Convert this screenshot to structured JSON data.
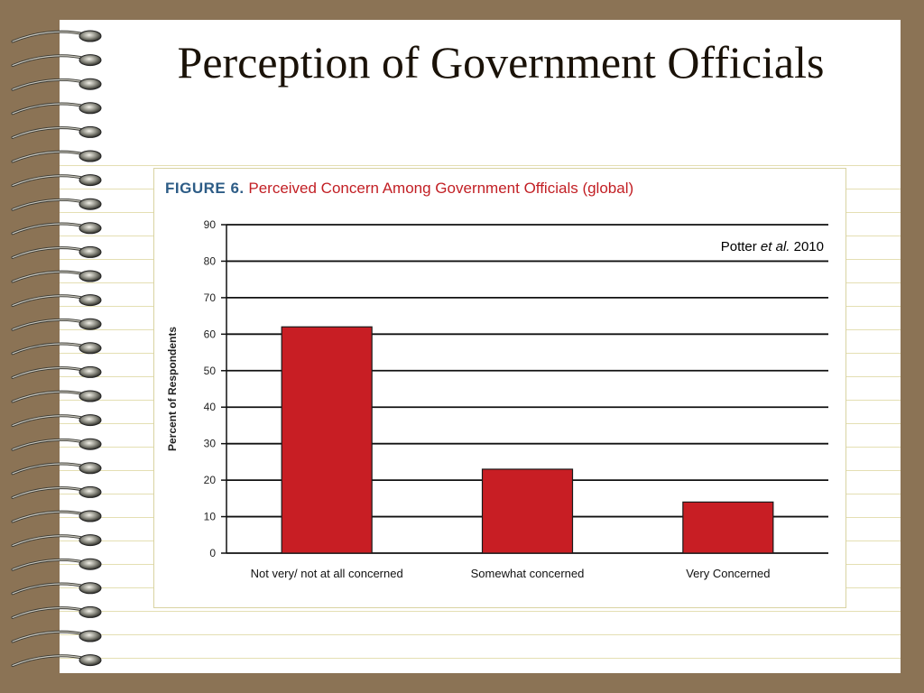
{
  "slide": {
    "title": "Perception of Government Officials"
  },
  "figure": {
    "label": "FIGURE 6.",
    "caption": "Perceived Concern Among Government Officials (global)",
    "citation_author": "Potter",
    "citation_etal": "et al.",
    "citation_year": "2010"
  },
  "colors": {
    "background": "#8b7355",
    "bar": "#c81e24",
    "figure_label": "#2d5c86",
    "caption_text": "#c21f24"
  },
  "chart_data": {
    "type": "bar",
    "title": "",
    "categories": [
      "Not very/ not at all concerned",
      "Somewhat concerned",
      "Very Concerned"
    ],
    "values": [
      62,
      23,
      14
    ],
    "xlabel": "",
    "ylabel": "Percent of Respondents",
    "ylim": [
      0,
      90
    ],
    "yticks": [
      0,
      10,
      20,
      30,
      40,
      50,
      60,
      70,
      80,
      90
    ],
    "grid": true
  }
}
